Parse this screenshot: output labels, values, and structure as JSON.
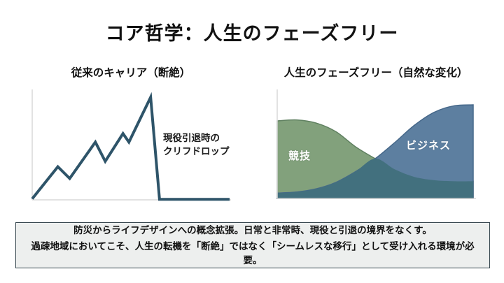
{
  "slide": {
    "title": "コア哲学：人生のフェーズフリー"
  },
  "left_chart": {
    "title": "従来のキャリア（断絶）",
    "annotation_line1": "現役引退時の",
    "annotation_line2": "クリフドロップ"
  },
  "right_chart": {
    "title": "人生のフェーズフリー（自然な変化）",
    "label_green": "競技",
    "label_blue": "ビジネス"
  },
  "footer": {
    "line1": "防災からライフデザインへの概念拡張。日常と非常時、現役と引退の境界をなくす。",
    "line2": "過疎地域においてこそ、人生の転機を「断絶」ではなく「シームレスな移行」として受け入れる環境が必要。"
  },
  "colors": {
    "line": "#2e5469",
    "green": "#82a17c",
    "green_edge": "#5f8060",
    "blue": "#5d7fa0",
    "blue_edge": "#46688a",
    "overlap": "#42707e",
    "axis": "#d9d9d9"
  },
  "chart_data": [
    {
      "type": "line",
      "title": "従来のキャリア（断絶）",
      "xlabel": "",
      "ylabel": "",
      "annotation": "現役引退時のクリフドロップ",
      "axes_labeled": false,
      "grid": false,
      "x_range_pct": [
        0,
        100
      ],
      "y_range_pct": [
        0,
        100
      ],
      "points": [
        [
          0,
          1
        ],
        [
          13,
          31
        ],
        [
          19,
          20
        ],
        [
          32,
          54
        ],
        [
          37,
          36
        ],
        [
          46,
          62
        ],
        [
          49,
          54
        ],
        [
          60,
          96
        ],
        [
          64.5,
          0.5
        ],
        [
          100,
          0.5
        ]
      ]
    },
    {
      "type": "area",
      "title": "人生のフェーズフリー（自然な変化）",
      "xlabel": "",
      "ylabel": "",
      "axes_labeled": false,
      "grid": false,
      "legend_position": "in-plot",
      "x": [
        0,
        10,
        20,
        30,
        40,
        50,
        60,
        70,
        80,
        90,
        100
      ],
      "series": [
        {
          "name": "競技",
          "values": [
            72,
            73,
            70,
            62,
            48,
            37,
            27,
            20,
            17,
            16,
            16
          ]
        },
        {
          "name": "ビジネス",
          "values": [
            5,
            6,
            9,
            15,
            25,
            37,
            52,
            68,
            80,
            86,
            87
          ]
        }
      ],
      "crossing_x_pct": 50
    }
  ]
}
